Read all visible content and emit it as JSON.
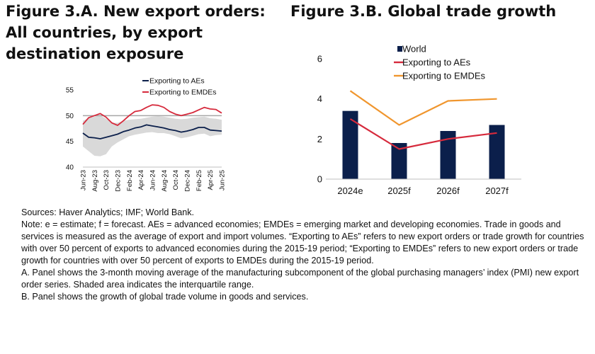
{
  "panel_a": {
    "title": "Figure 3.A. New export orders: All countries, by export destination exposure"
  },
  "panel_b": {
    "title": "Figure 3.B. Global trade growth"
  },
  "notes": {
    "sources": "Sources: Haver Analytics; IMF; World Bank.",
    "note": "Note: e = estimate; f = forecast. AEs = advanced economies; EMDEs = emerging market and developing economies. Trade in goods and services is measured as the average of export and import volumes. “Exporting to AEs” refers to new export orders or trade growth for countries with over 50 percent of exports to advanced economies during the 2015-19 period; “Exporting to EMDEs” refers to new export orders or trade growth for countries with over 50 percent of exports to EMDEs during the 2015-19 period.",
    "panel_a": "A. Panel shows the 3-month moving average of the manufacturing subcomponent of the global purchasing managers’ index (PMI) new export order series. Shaded area indicates the interquartile range.",
    "panel_b": "B. Panel shows the growth of global trade volume in goods and services."
  },
  "chart_data": [
    {
      "type": "line",
      "x": [
        "Jun-23",
        "Jul-23",
        "Aug-23",
        "Sep-23",
        "Oct-23",
        "Nov-23",
        "Dec-23",
        "Jan-24",
        "Feb-24",
        "Mar-24",
        "Apr-24",
        "May-24",
        "Jun-24",
        "Jul-24",
        "Aug-24",
        "Sep-24",
        "Oct-24",
        "Nov-24",
        "Dec-24",
        "Jan-25",
        "Feb-25",
        "Mar-25",
        "Apr-25",
        "May-25",
        "Jun-25"
      ],
      "x_tick_labels": [
        "Jun-23",
        "Aug-23",
        "Oct-23",
        "Dec-23",
        "Feb-24",
        "Apr-24",
        "Jun-24",
        "Aug-24",
        "Oct-24",
        "Dec-24",
        "Feb-25",
        "Apr-25",
        "Jun-25"
      ],
      "series": [
        {
          "name": "Exporting to AEs",
          "color": "#0b1f4b",
          "values": [
            46.6,
            45.8,
            45.7,
            45.5,
            45.8,
            46.1,
            46.4,
            46.9,
            47.2,
            47.6,
            47.8,
            48.2,
            48.0,
            47.8,
            47.6,
            47.3,
            47.1,
            46.8,
            47.0,
            47.3,
            47.7,
            47.7,
            47.2,
            47.1,
            47.0
          ]
        },
        {
          "name": "Exporting to EMDEs",
          "color": "#d62a3c",
          "values": [
            48.3,
            49.6,
            50.0,
            50.4,
            49.7,
            48.6,
            48.1,
            49.0,
            50.0,
            50.8,
            51.0,
            51.6,
            52.1,
            52.0,
            51.6,
            50.8,
            50.3,
            50.0,
            50.3,
            50.6,
            51.1,
            51.6,
            51.3,
            51.2,
            50.5
          ]
        }
      ],
      "iqr_band": {
        "lower": [
          44.0,
          43.1,
          42.2,
          42.1,
          42.5,
          44.0,
          44.8,
          45.4,
          46.0,
          46.3,
          46.5,
          46.7,
          46.8,
          46.6,
          46.6,
          46.4,
          46.0,
          45.6,
          45.8,
          46.1,
          46.4,
          46.5,
          46.0,
          46.2,
          46.3
        ],
        "upper": [
          49.0,
          49.5,
          49.8,
          50.1,
          49.4,
          48.6,
          48.6,
          49.0,
          49.2,
          49.3,
          49.4,
          49.6,
          49.8,
          49.9,
          49.8,
          49.6,
          49.4,
          49.3,
          49.4,
          49.6,
          49.7,
          49.8,
          49.5,
          49.4,
          49.2
        ],
        "color": "#d9d9d9"
      },
      "yticks": [
        40,
        45,
        50,
        55
      ],
      "ylim": [
        40,
        55
      ],
      "reference_line": {
        "y": 50,
        "color": "#a6a6a6"
      },
      "legend_position": "top-right",
      "grid": false
    },
    {
      "type": "bar",
      "categories": [
        "2024e",
        "2025f",
        "2026f",
        "2027f"
      ],
      "series": [
        {
          "name": "World",
          "type": "bar",
          "color": "#0b1f4b",
          "values": [
            3.4,
            1.8,
            2.4,
            2.7
          ]
        },
        {
          "name": "Exporting to AEs",
          "type": "line",
          "color": "#d62a3c",
          "values": [
            3.0,
            1.5,
            2.0,
            2.3
          ]
        },
        {
          "name": "Exporting to EMDEs",
          "type": "line",
          "color": "#f0962e",
          "values": [
            4.4,
            2.7,
            3.9,
            4.0
          ]
        }
      ],
      "yticks": [
        0,
        2,
        4,
        6
      ],
      "ylim": [
        0,
        6
      ],
      "legend_position": "top-left",
      "grid": false
    }
  ]
}
